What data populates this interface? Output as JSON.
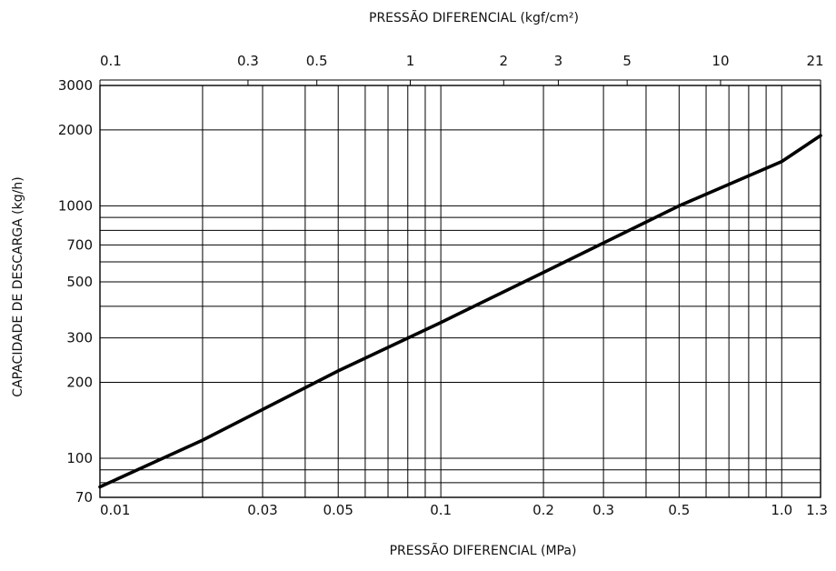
{
  "chart_data": {
    "type": "line",
    "title": "",
    "xlabel": "PRESSÃO DIFERENCIAL (MPa)",
    "x2label": "PRESSÃO DIFERENCIAL (kgf/cm²)",
    "ylabel": "CAPACIDADE DE DESCARGA (kg/h)",
    "x_scale": "log",
    "y_scale": "log",
    "xlim": [
      0.01,
      1.3
    ],
    "x2lim": [
      0.1,
      21
    ],
    "ylim": [
      70,
      3000
    ],
    "grid": true,
    "x_grid": [
      0.02,
      0.03,
      0.04,
      0.05,
      0.06,
      0.07,
      0.08,
      0.09,
      0.1,
      0.2,
      0.3,
      0.4,
      0.5,
      0.6,
      0.7,
      0.8,
      0.9,
      1.0
    ],
    "y_grid": [
      80,
      90,
      100,
      200,
      300,
      400,
      500,
      600,
      700,
      800,
      900,
      1000,
      2000
    ],
    "x_tick_labels": [
      {
        "value": 0.01,
        "label": "0.01"
      },
      {
        "value": 0.03,
        "label": "0.03"
      },
      {
        "value": 0.05,
        "label": "0.05"
      },
      {
        "value": 0.1,
        "label": "0.1"
      },
      {
        "value": 0.2,
        "label": "0.2"
      },
      {
        "value": 0.3,
        "label": "0.3"
      },
      {
        "value": 0.5,
        "label": "0.5"
      },
      {
        "value": 1.0,
        "label": "1.0"
      },
      {
        "value": 1.3,
        "label": "1.3"
      }
    ],
    "x2_tick_labels": [
      {
        "value": 0.1,
        "label": "0.1"
      },
      {
        "value": 0.3,
        "label": "0.3"
      },
      {
        "value": 0.5,
        "label": "0.5"
      },
      {
        "value": 1,
        "label": "1"
      },
      {
        "value": 2,
        "label": "2"
      },
      {
        "value": 3,
        "label": "3"
      },
      {
        "value": 5,
        "label": "5"
      },
      {
        "value": 10,
        "label": "10"
      },
      {
        "value": 21,
        "label": "21"
      }
    ],
    "y_tick_labels": [
      {
        "value": 70,
        "label": "70"
      },
      {
        "value": 100,
        "label": "100"
      },
      {
        "value": 200,
        "label": "200"
      },
      {
        "value": 300,
        "label": "300"
      },
      {
        "value": 500,
        "label": "500"
      },
      {
        "value": 700,
        "label": "700"
      },
      {
        "value": 1000,
        "label": "1000"
      },
      {
        "value": 2000,
        "label": "2000"
      },
      {
        "value": 3000,
        "label": "3000"
      }
    ],
    "series": [
      {
        "x": [
          0.01,
          0.02,
          0.05,
          0.1,
          0.2,
          0.5,
          1.0,
          1.3
        ],
        "y": [
          77,
          118,
          222,
          345,
          545,
          1000,
          1500,
          1900
        ]
      }
    ]
  }
}
